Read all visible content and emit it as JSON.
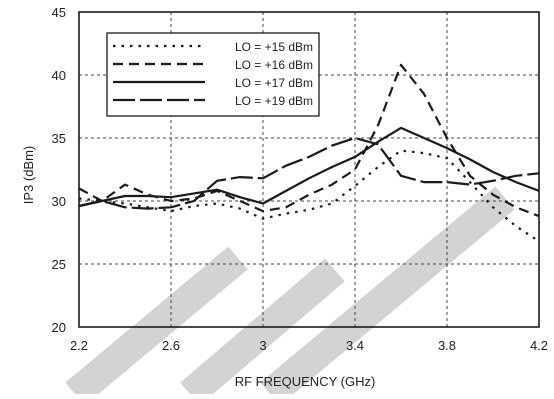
{
  "chart_data": {
    "type": "line",
    "title": "",
    "xlabel": "RF FREQUENCY (GHz)",
    "ylabel": "IP3 (dBm)",
    "xlim": [
      2.2,
      4.2
    ],
    "ylim": [
      20,
      45
    ],
    "xticks": [
      2.2,
      2.6,
      3.0,
      3.4,
      3.8,
      4.2
    ],
    "xtick_labels": [
      "2.2",
      "2.6",
      "3",
      "3.4",
      "3.8",
      "4.2"
    ],
    "yticks": [
      20,
      25,
      30,
      35,
      40,
      45
    ],
    "ytick_labels": [
      "20",
      "25",
      "30",
      "35",
      "40",
      "45"
    ],
    "grid": "dotted",
    "legend_position": "top-left",
    "series": [
      {
        "name": "LO = +15 dBm",
        "dash": "dot",
        "x": [
          2.2,
          2.3,
          2.4,
          2.5,
          2.6,
          2.7,
          2.8,
          2.9,
          3.0,
          3.1,
          3.2,
          3.3,
          3.4,
          3.5,
          3.6,
          3.7,
          3.8,
          3.9,
          4.0,
          4.1,
          4.2
        ],
        "y": [
          30.2,
          30.0,
          29.8,
          29.5,
          29.2,
          29.6,
          29.8,
          29.4,
          28.6,
          29.0,
          29.3,
          29.8,
          31.2,
          32.7,
          34.0,
          33.8,
          33.4,
          31.5,
          29.5,
          28.0,
          26.8
        ]
      },
      {
        "name": "LO = +16 dBm",
        "dash": "dash",
        "x": [
          2.2,
          2.3,
          2.4,
          2.5,
          2.6,
          2.7,
          2.8,
          2.9,
          3.0,
          3.1,
          3.2,
          3.3,
          3.4,
          3.5,
          3.6,
          3.7,
          3.8,
          3.9,
          4.0,
          4.1,
          4.2
        ],
        "y": [
          31.0,
          30.0,
          31.3,
          30.5,
          30.0,
          30.2,
          30.8,
          30.0,
          29.2,
          29.5,
          30.5,
          31.3,
          32.5,
          36.0,
          40.8,
          38.5,
          35.0,
          32.0,
          30.5,
          29.5,
          28.8
        ]
      },
      {
        "name": "LO = +17 dBm",
        "dash": "solid",
        "x": [
          2.2,
          2.3,
          2.4,
          2.5,
          2.6,
          2.7,
          2.8,
          2.9,
          3.0,
          3.1,
          3.2,
          3.3,
          3.4,
          3.5,
          3.6,
          3.7,
          3.8,
          3.9,
          4.0,
          4.1,
          4.2
        ],
        "y": [
          29.6,
          30.0,
          30.4,
          30.4,
          30.3,
          30.6,
          30.9,
          30.3,
          29.8,
          30.8,
          31.8,
          32.7,
          33.5,
          34.7,
          35.8,
          35.0,
          34.2,
          33.3,
          32.3,
          31.5,
          30.8
        ]
      },
      {
        "name": "LO = +19 dBm",
        "dash": "longdash",
        "x": [
          2.2,
          2.3,
          2.4,
          2.5,
          2.6,
          2.7,
          2.8,
          2.9,
          3.0,
          3.1,
          3.2,
          3.3,
          3.4,
          3.5,
          3.6,
          3.7,
          3.8,
          3.9,
          4.0,
          4.1,
          4.2
        ],
        "y": [
          29.6,
          30.0,
          29.5,
          29.4,
          29.5,
          30.0,
          31.6,
          31.9,
          31.8,
          32.8,
          33.5,
          34.4,
          35.0,
          34.5,
          32.0,
          31.5,
          31.5,
          31.3,
          31.6,
          32.0,
          32.2
        ]
      }
    ],
    "colors": {
      "lines": "#1a1a1a",
      "grid": "#444444",
      "frame": "#1a1a1a",
      "watermark": "#d3d3d3"
    }
  }
}
